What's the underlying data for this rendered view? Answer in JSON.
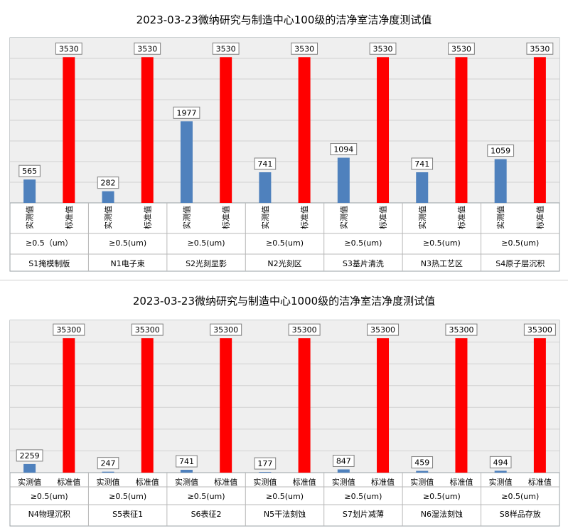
{
  "chart_data": [
    {
      "type": "bar",
      "title": "2023-03-23微纳研究与制造中心100级的洁净室洁净度测试值",
      "series_labels": [
        "实测值",
        "标准值"
      ],
      "size_label": "≥0.5（um）",
      "categories": [
        "S1掩模制版",
        "N1电子束",
        "S2光刻显影",
        "N2光刻区",
        "S3基片清洗",
        "N3热工艺区",
        "S4原子层沉积"
      ],
      "size_labels": [
        "≥0.5（um）",
        "≥0.5(um)",
        "≥0.5(um)",
        "≥0.5(um)",
        "≥0.5(um)",
        "≥0.5(um)",
        "≥0.5(um)"
      ],
      "series": [
        {
          "name": "实测值",
          "values": [
            565,
            282,
            1977,
            741,
            1094,
            741,
            1059
          ],
          "color": "#4f81bd"
        },
        {
          "name": "标准值",
          "values": [
            3530,
            3530,
            3530,
            3530,
            3530,
            3530,
            3530
          ],
          "color": "#ff0000"
        }
      ],
      "ylim": [
        0,
        4000
      ],
      "grid": true,
      "vertical_labels": true
    },
    {
      "type": "bar",
      "title": "2023-03-23微纳研究与制造中心1000级的洁净室洁净度测试值",
      "series_labels": [
        "实测值",
        "标准值"
      ],
      "categories": [
        "N4物理沉积",
        "S5表征1",
        "S6表征2",
        "N5干法刻蚀",
        "S7划片减薄",
        "N6湿法刻蚀",
        "S8样品存放"
      ],
      "size_labels": [
        "≥0.5(um)",
        "≥0.5(um)",
        "≥0.5(um)",
        "≥0.5(um)",
        "≥0.5(um)",
        "≥0.5(um)",
        "≥0.5(um)"
      ],
      "series": [
        {
          "name": "实测值",
          "values": [
            2259,
            247,
            741,
            177,
            847,
            459,
            494
          ],
          "color": "#4f81bd"
        },
        {
          "name": "标准值",
          "values": [
            35300,
            35300,
            35300,
            35300,
            35300,
            35300,
            35300
          ],
          "color": "#ff0000"
        }
      ],
      "ylim": [
        0,
        40000
      ],
      "grid": true,
      "vertical_labels": false
    }
  ]
}
